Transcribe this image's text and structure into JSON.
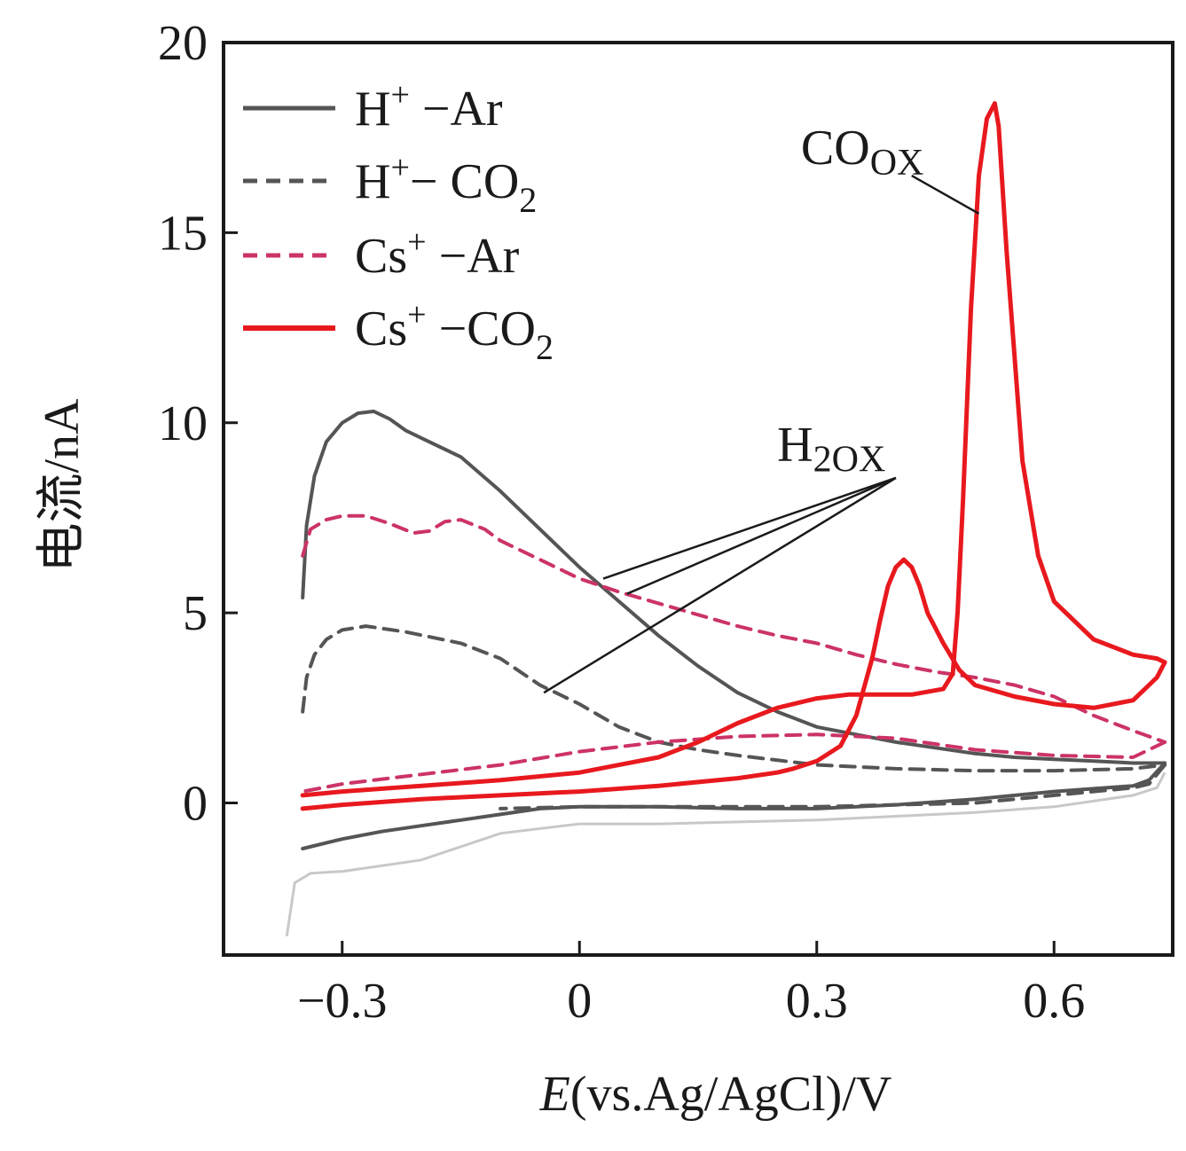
{
  "chart_data": {
    "type": "line",
    "title": "",
    "xlabel_italic": "E",
    "xlabel_rest": "(vs.Ag/AgCl)/V",
    "ylabel": "电流/nA",
    "xlim": [
      -0.45,
      0.75
    ],
    "ylim": [
      -4,
      20
    ],
    "x_ticks": [
      -0.3,
      0,
      0.3,
      0.6
    ],
    "x_tick_labels": [
      "−0.3",
      "0",
      "0.3",
      "0.6"
    ],
    "y_ticks": [
      0,
      5,
      10,
      15,
      20
    ],
    "y_tick_labels": [
      "0",
      "5",
      "10",
      "15",
      "20"
    ],
    "grid": false,
    "legend_position": "top-left",
    "series": [
      {
        "legend_base": "H",
        "legend_sup": "+",
        "legend_mid": " −Ar",
        "legend_sub": "",
        "color": "#555555",
        "dash": "solid",
        "forward": [
          [
            -0.35,
            5.4
          ],
          [
            -0.345,
            7.3
          ],
          [
            -0.335,
            8.6
          ],
          [
            -0.32,
            9.5
          ],
          [
            -0.3,
            10.0
          ],
          [
            -0.28,
            10.25
          ],
          [
            -0.26,
            10.3
          ],
          [
            -0.24,
            10.1
          ],
          [
            -0.22,
            9.8
          ],
          [
            -0.2,
            9.6
          ],
          [
            -0.15,
            9.1
          ],
          [
            -0.1,
            8.2
          ],
          [
            -0.05,
            7.2
          ],
          [
            0.0,
            6.2
          ],
          [
            0.05,
            5.3
          ],
          [
            0.1,
            4.4
          ],
          [
            0.15,
            3.6
          ],
          [
            0.2,
            2.9
          ],
          [
            0.25,
            2.4
          ],
          [
            0.3,
            2.0
          ],
          [
            0.35,
            1.8
          ],
          [
            0.4,
            1.6
          ],
          [
            0.45,
            1.45
          ],
          [
            0.5,
            1.3
          ],
          [
            0.55,
            1.2
          ],
          [
            0.6,
            1.15
          ],
          [
            0.65,
            1.1
          ],
          [
            0.7,
            1.05
          ],
          [
            0.74,
            1.05
          ]
        ],
        "reverse": [
          [
            0.74,
            1.05
          ],
          [
            0.72,
            0.6
          ],
          [
            0.7,
            0.45
          ],
          [
            0.6,
            0.3
          ],
          [
            0.5,
            0.1
          ],
          [
            0.4,
            -0.05
          ],
          [
            0.3,
            -0.15
          ],
          [
            0.2,
            -0.15
          ],
          [
            0.1,
            -0.1
          ],
          [
            0.0,
            -0.1
          ],
          [
            -0.05,
            -0.15
          ],
          [
            -0.1,
            -0.3
          ],
          [
            -0.15,
            -0.45
          ],
          [
            -0.2,
            -0.6
          ],
          [
            -0.25,
            -0.75
          ],
          [
            -0.3,
            -0.95
          ],
          [
            -0.35,
            -1.2
          ]
        ]
      },
      {
        "legend_base": "H",
        "legend_sup": "+",
        "legend_mid": "− CO",
        "legend_sub": "2",
        "color": "#555555",
        "dash": "dashed",
        "forward": [
          [
            -0.35,
            2.4
          ],
          [
            -0.345,
            3.3
          ],
          [
            -0.335,
            3.9
          ],
          [
            -0.32,
            4.3
          ],
          [
            -0.3,
            4.55
          ],
          [
            -0.27,
            4.65
          ],
          [
            -0.22,
            4.5
          ],
          [
            -0.15,
            4.2
          ],
          [
            -0.1,
            3.8
          ],
          [
            -0.05,
            3.1
          ],
          [
            0.0,
            2.6
          ],
          [
            0.05,
            2.0
          ],
          [
            0.1,
            1.6
          ],
          [
            0.15,
            1.4
          ],
          [
            0.2,
            1.25
          ],
          [
            0.3,
            1.0
          ],
          [
            0.4,
            0.9
          ],
          [
            0.5,
            0.85
          ],
          [
            0.6,
            0.85
          ],
          [
            0.7,
            0.9
          ],
          [
            0.74,
            1.0
          ]
        ],
        "reverse": [
          [
            0.74,
            1.0
          ],
          [
            0.72,
            0.5
          ],
          [
            0.7,
            0.4
          ],
          [
            0.6,
            0.2
          ],
          [
            0.5,
            0.0
          ],
          [
            0.4,
            -0.05
          ],
          [
            0.3,
            -0.1
          ],
          [
            0.2,
            -0.1
          ],
          [
            0.1,
            -0.1
          ],
          [
            0.0,
            -0.1
          ],
          [
            -0.1,
            -0.15
          ]
        ]
      },
      {
        "legend_base": "Cs",
        "legend_sup": "+",
        "legend_mid": " −Ar",
        "legend_sub": "",
        "color": "#cc3366",
        "dash": "dashed",
        "forward": [
          [
            -0.35,
            6.5
          ],
          [
            -0.34,
            7.2
          ],
          [
            -0.32,
            7.45
          ],
          [
            -0.3,
            7.55
          ],
          [
            -0.27,
            7.55
          ],
          [
            -0.24,
            7.35
          ],
          [
            -0.21,
            7.1
          ],
          [
            -0.19,
            7.15
          ],
          [
            -0.17,
            7.4
          ],
          [
            -0.15,
            7.45
          ],
          [
            -0.12,
            7.2
          ],
          [
            -0.1,
            6.9
          ],
          [
            -0.05,
            6.4
          ],
          [
            0.0,
            5.9
          ],
          [
            0.05,
            5.55
          ],
          [
            0.1,
            5.25
          ],
          [
            0.15,
            4.95
          ],
          [
            0.2,
            4.65
          ],
          [
            0.25,
            4.4
          ],
          [
            0.3,
            4.2
          ],
          [
            0.35,
            3.9
          ],
          [
            0.4,
            3.65
          ],
          [
            0.45,
            3.45
          ],
          [
            0.5,
            3.3
          ],
          [
            0.55,
            3.1
          ],
          [
            0.6,
            2.8
          ],
          [
            0.65,
            2.3
          ],
          [
            0.7,
            1.9
          ],
          [
            0.74,
            1.6
          ]
        ],
        "reverse": [
          [
            0.74,
            1.6
          ],
          [
            0.7,
            1.2
          ],
          [
            0.6,
            1.25
          ],
          [
            0.5,
            1.4
          ],
          [
            0.4,
            1.7
          ],
          [
            0.3,
            1.8
          ],
          [
            0.2,
            1.75
          ],
          [
            0.1,
            1.6
          ],
          [
            0.0,
            1.35
          ],
          [
            -0.1,
            1.0
          ],
          [
            -0.2,
            0.75
          ],
          [
            -0.3,
            0.5
          ],
          [
            -0.35,
            0.3
          ]
        ]
      },
      {
        "legend_base": "Cs",
        "legend_sup": "+",
        "legend_mid": " −CO",
        "legend_sub": "2",
        "color": "#e8191e",
        "dash": "solid",
        "forward": [
          [
            -0.35,
            -0.15
          ],
          [
            -0.3,
            -0.05
          ],
          [
            -0.2,
            0.1
          ],
          [
            -0.1,
            0.2
          ],
          [
            0.0,
            0.3
          ],
          [
            0.1,
            0.45
          ],
          [
            0.2,
            0.65
          ],
          [
            0.25,
            0.8
          ],
          [
            0.27,
            0.9
          ],
          [
            0.3,
            1.1
          ],
          [
            0.33,
            1.5
          ],
          [
            0.35,
            2.3
          ],
          [
            0.37,
            3.8
          ],
          [
            0.38,
            4.8
          ],
          [
            0.39,
            5.7
          ],
          [
            0.4,
            6.2
          ],
          [
            0.41,
            6.4
          ],
          [
            0.42,
            6.2
          ],
          [
            0.43,
            5.7
          ],
          [
            0.44,
            5.0
          ],
          [
            0.46,
            4.2
          ],
          [
            0.48,
            3.5
          ],
          [
            0.5,
            3.1
          ],
          [
            0.55,
            2.8
          ],
          [
            0.6,
            2.6
          ],
          [
            0.65,
            2.5
          ],
          [
            0.7,
            2.7
          ],
          [
            0.73,
            3.3
          ],
          [
            0.74,
            3.7
          ]
        ],
        "reverse": [
          [
            0.74,
            3.7
          ],
          [
            0.73,
            3.8
          ],
          [
            0.7,
            3.9
          ],
          [
            0.65,
            4.3
          ],
          [
            0.6,
            5.3
          ],
          [
            0.58,
            6.5
          ],
          [
            0.56,
            9.0
          ],
          [
            0.54,
            14.5
          ],
          [
            0.53,
            17.8
          ],
          [
            0.525,
            18.4
          ],
          [
            0.515,
            18.0
          ],
          [
            0.505,
            16.5
          ],
          [
            0.495,
            13.0
          ],
          [
            0.485,
            8.0
          ],
          [
            0.478,
            5.0
          ],
          [
            0.472,
            3.4
          ],
          [
            0.46,
            3.0
          ],
          [
            0.42,
            2.85
          ],
          [
            0.38,
            2.85
          ],
          [
            0.34,
            2.85
          ],
          [
            0.3,
            2.75
          ],
          [
            0.25,
            2.5
          ],
          [
            0.2,
            2.1
          ],
          [
            0.15,
            1.6
          ],
          [
            0.1,
            1.2
          ],
          [
            0.05,
            1.0
          ],
          [
            0.0,
            0.8
          ],
          [
            -0.1,
            0.6
          ],
          [
            -0.2,
            0.45
          ],
          [
            -0.3,
            0.3
          ],
          [
            -0.35,
            0.2
          ]
        ]
      }
    ],
    "background_traces": [
      {
        "color": "#c8c8c8",
        "points": [
          [
            -0.37,
            -3.5
          ],
          [
            -0.365,
            -2.8
          ],
          [
            -0.36,
            -2.1
          ],
          [
            -0.34,
            -1.85
          ],
          [
            -0.3,
            -1.8
          ],
          [
            -0.2,
            -1.5
          ],
          [
            -0.1,
            -0.8
          ],
          [
            0.0,
            -0.55
          ],
          [
            0.1,
            -0.55
          ],
          [
            0.2,
            -0.5
          ],
          [
            0.3,
            -0.45
          ],
          [
            0.4,
            -0.35
          ],
          [
            0.5,
            -0.25
          ],
          [
            0.6,
            -0.1
          ],
          [
            0.7,
            0.2
          ],
          [
            0.73,
            0.4
          ],
          [
            0.74,
            0.8
          ]
        ]
      }
    ],
    "annotations": [
      {
        "label_base": "CO",
        "label_sub": "OX",
        "text_xy": [
          0.28,
          16.8
        ],
        "arrows": [
          {
            "from": [
              0.42,
              16.5
            ],
            "to": [
              0.505,
              15.5
            ]
          }
        ]
      },
      {
        "label_base": "H",
        "label_sub": "2OX",
        "text_xy": [
          0.25,
          9.0
        ],
        "arrows": [
          {
            "from": [
              0.4,
              8.55
            ],
            "to": [
              0.03,
              5.9
            ]
          },
          {
            "from": [
              0.4,
              8.55
            ],
            "to": [
              0.06,
              5.5
            ]
          },
          {
            "from": [
              0.4,
              8.55
            ],
            "to": [
              -0.045,
              2.9
            ]
          }
        ]
      }
    ]
  }
}
